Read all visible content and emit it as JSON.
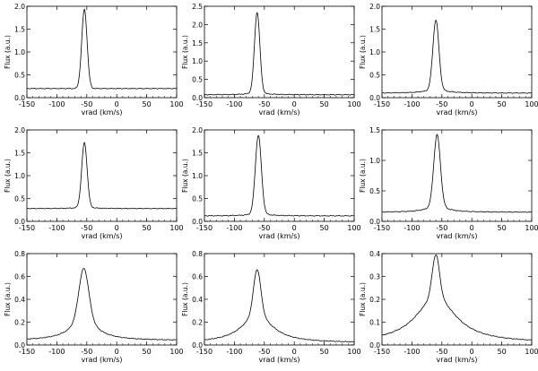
{
  "chart_data": [
    {
      "type": "line",
      "xlabel": "vrad (km/s)",
      "ylabel": "Flux (a.u.)",
      "xlim": [
        -150,
        100
      ],
      "ylim": [
        0,
        2.0
      ],
      "xticks": [
        "-150",
        "-100",
        "-50",
        "0",
        "50",
        "100"
      ],
      "yticks": [
        "0.0",
        "0.5",
        "1.0",
        "1.5",
        "2.0"
      ],
      "profile": {
        "center": -54,
        "peak": 1.93,
        "base": 0.2,
        "core_width": 4.5,
        "wing_amp": 0.0,
        "wing_width": 20
      }
    },
    {
      "type": "line",
      "xlabel": "vrad (km/s)",
      "ylabel": "Flux (a.u.)",
      "xlim": [
        -150,
        100
      ],
      "ylim": [
        0,
        2.5
      ],
      "xticks": [
        "-150",
        "-100",
        "-50",
        "0",
        "50",
        "100"
      ],
      "yticks": [
        "0.0",
        "0.5",
        "1.0",
        "1.5",
        "2.0",
        "2.5"
      ],
      "profile": {
        "center": -62,
        "peak": 2.33,
        "base": 0.08,
        "core_width": 4.5,
        "wing_amp": 0.05,
        "wing_width": 18
      }
    },
    {
      "type": "line",
      "xlabel": "vrad (km/s)",
      "ylabel": "Flux (a.u.)",
      "xlim": [
        -150,
        100
      ],
      "ylim": [
        0,
        2.0
      ],
      "xticks": [
        "-150",
        "-100",
        "-50",
        "0",
        "50",
        "100"
      ],
      "yticks": [
        "0.0",
        "0.5",
        "1.0",
        "1.5",
        "2.0"
      ],
      "profile": {
        "center": -60,
        "peak": 1.7,
        "base": 0.1,
        "core_width": 5,
        "wing_amp": 0.08,
        "wing_width": 20
      }
    },
    {
      "type": "line",
      "xlabel": "vrad (km/s)",
      "ylabel": "Flux (a.u.)",
      "xlim": [
        -150,
        100
      ],
      "ylim": [
        0,
        2.0
      ],
      "xticks": [
        "-150",
        "-100",
        "-50",
        "0",
        "50",
        "100"
      ],
      "yticks": [
        "0.0",
        "0.5",
        "1.0",
        "1.5",
        "2.0"
      ],
      "profile": {
        "center": -54,
        "peak": 1.72,
        "base": 0.28,
        "core_width": 4.5,
        "wing_amp": 0.03,
        "wing_width": 16
      }
    },
    {
      "type": "line",
      "xlabel": "vrad (km/s)",
      "ylabel": "Flux (a.u.)",
      "xlim": [
        -150,
        100
      ],
      "ylim": [
        0,
        2.0
      ],
      "xticks": [
        "-150",
        "-100",
        "-50",
        "0",
        "50",
        "100"
      ],
      "yticks": [
        "0.0",
        "0.5",
        "1.0",
        "1.5",
        "2.0"
      ],
      "profile": {
        "center": -60,
        "peak": 1.88,
        "base": 0.12,
        "core_width": 5,
        "wing_amp": 0.05,
        "wing_width": 18
      }
    },
    {
      "type": "line",
      "xlabel": "vrad (km/s)",
      "ylabel": "Flux (a.u.)",
      "xlim": [
        -150,
        100
      ],
      "ylim": [
        0,
        1.5
      ],
      "xticks": [
        "-150",
        "-100",
        "-50",
        "0",
        "50",
        "100"
      ],
      "yticks": [
        "0.0",
        "0.5",
        "1.0",
        "1.5"
      ],
      "profile": {
        "center": -58,
        "peak": 1.42,
        "base": 0.15,
        "core_width": 5.5,
        "wing_amp": 0.1,
        "wing_width": 20
      }
    },
    {
      "type": "line",
      "xlabel": "vrad (km/s)",
      "ylabel": "Flux (a.u.)",
      "xlim": [
        -150,
        100
      ],
      "ylim": [
        0,
        0.8
      ],
      "xticks": [
        "-150",
        "-100",
        "-50",
        "0",
        "50",
        "100"
      ],
      "yticks": [
        "0.0",
        "0.2",
        "0.4",
        "0.6",
        "0.8"
      ],
      "profile": {
        "center": -55,
        "peak": 0.67,
        "base": 0.04,
        "core_width": 8,
        "wing_amp": 0.2,
        "wing_width": 25
      }
    },
    {
      "type": "line",
      "xlabel": "vrad (km/s)",
      "ylabel": "Flux (a.u.)",
      "xlim": [
        -150,
        100
      ],
      "ylim": [
        0,
        0.8
      ],
      "xticks": [
        "-150",
        "-100",
        "-50",
        "0",
        "50",
        "100"
      ],
      "yticks": [
        "0.0",
        "0.2",
        "0.4",
        "0.6",
        "0.8"
      ],
      "profile": {
        "center": -62,
        "peak": 0.66,
        "base": 0.02,
        "core_width": 6,
        "wing_amp": 0.25,
        "wing_width": 30
      }
    },
    {
      "type": "line",
      "xlabel": "vrad (km/s)",
      "ylabel": "Flux (a.u.)",
      "xlim": [
        -150,
        100
      ],
      "ylim": [
        0,
        0.4
      ],
      "xticks": [
        "-150",
        "-100",
        "-50",
        "0",
        "50",
        "100"
      ],
      "yticks": [
        "0.0",
        "0.1",
        "0.2",
        "0.3",
        "0.4"
      ],
      "profile": {
        "center": -60,
        "peak": 0.395,
        "base": 0.01,
        "core_width": 6,
        "wing_amp": 0.2,
        "wing_width": 40
      }
    }
  ]
}
